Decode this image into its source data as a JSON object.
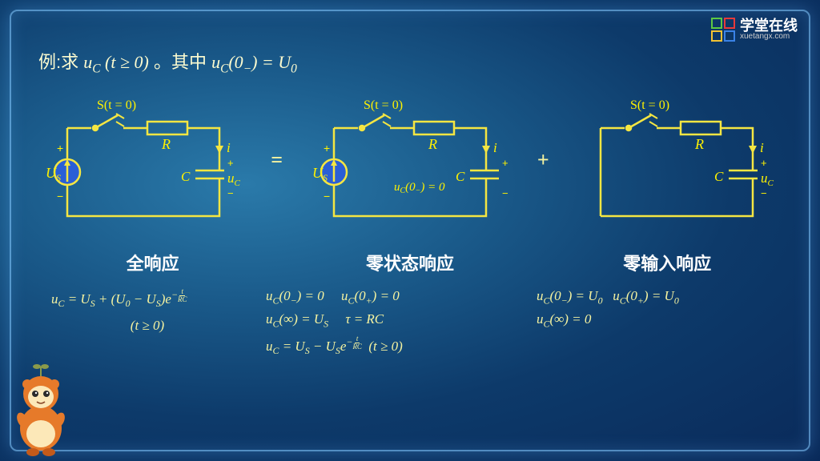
{
  "title_prefix": "例:求 ",
  "title_expr1a": "u",
  "title_expr1b": "C",
  "title_expr1c": " (t ≥ 0)",
  "title_mid": "。其中 ",
  "title_expr2a": "u",
  "title_expr2b": "C",
  "title_expr2c": "(0",
  "title_expr2d": "−",
  "title_expr2e": ") = U",
  "title_expr2f": "0",
  "logo_cn": "学堂在线",
  "logo_en": "xuetangx.com",
  "logo_colors": [
    "#5dc843",
    "#e63a3a",
    "#f2c233",
    "#3a82e6"
  ],
  "op_eq": "=",
  "op_plus": "+",
  "label_full": "全响应",
  "label_zs": "零状态响应",
  "label_zi": "零输入响应",
  "circuit": {
    "stroke": "#f5e642",
    "text": "#fff200",
    "blue_fill": "#2a5fd6",
    "switch": "S(t = 0)",
    "R": "R",
    "i": "i",
    "C": "C",
    "Us": "U",
    "Us_sub": "S",
    "uc": "u",
    "uc_sub": "C",
    "plus": "+",
    "minus": "−",
    "zs_label_a": "u",
    "zs_label_b": "C",
    "zs_label_c": "(0",
    "zs_label_d": "−",
    "zs_label_e": ") = 0"
  },
  "eq_full_1": "u_C = U_S + (U_0 − U_S) e^{−t/RC}",
  "eq_full_2": "(t ≥ 0)",
  "eq_zs_1a": "u_C(0_−) = 0",
  "eq_zs_1b": "u_C(0_+) = 0",
  "eq_zs_2a": "u_C(∞) = U_S",
  "eq_zs_2b": "τ = RC",
  "eq_zs_3": "u_C = U_S − U_S e^{−t/RC}   (t ≥ 0)",
  "eq_zi_1a": "u_C(0_−) = U_0",
  "eq_zi_1b": "u_C(0_+) = U_0",
  "eq_zi_2": "u_C(∞) = 0",
  "frac_num": "t",
  "frac_den": "RC",
  "exp_neg": "−"
}
